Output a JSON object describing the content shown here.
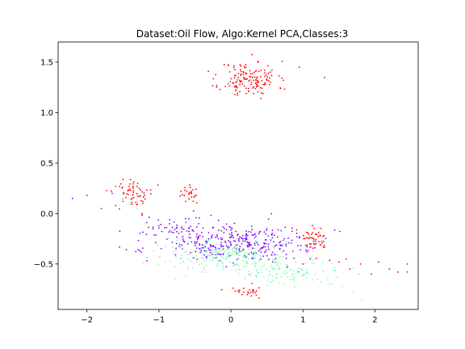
{
  "chart_data": {
    "type": "scatter",
    "title": "Dataset:Oil Flow, Algo:Kernel PCA,Classes:3",
    "xlabel": "",
    "ylabel": "",
    "xlim": [
      -2.4,
      2.6
    ],
    "ylim": [
      -0.95,
      1.7
    ],
    "xticks": [
      -2,
      -1,
      0,
      1,
      2
    ],
    "xtick_labels": [
      "−2",
      "−1",
      "0",
      "1",
      "2"
    ],
    "yticks": [
      -0.5,
      0.0,
      0.5,
      1.0,
      1.5
    ],
    "ytick_labels": [
      "−0.5",
      "0.0",
      "0.5",
      "1.0",
      "1.5"
    ],
    "grid": false,
    "legend": "none",
    "series": [
      {
        "color": "#ff0000",
        "clusters": [
          {
            "cx": 0.25,
            "cy": 1.33,
            "sx": 0.2,
            "sy": 0.09,
            "n": 150,
            "seed": 11
          },
          {
            "cx": -1.33,
            "cy": 0.2,
            "sx": 0.15,
            "sy": 0.07,
            "n": 60,
            "seed": 12
          },
          {
            "cx": -0.58,
            "cy": 0.2,
            "sx": 0.07,
            "sy": 0.04,
            "n": 25,
            "seed": 13
          },
          {
            "cx": 1.2,
            "cy": -0.25,
            "sx": 0.12,
            "sy": 0.06,
            "n": 45,
            "seed": 14
          },
          {
            "cx": 0.25,
            "cy": -0.77,
            "sx": 0.12,
            "sy": 0.03,
            "n": 25,
            "seed": 15
          }
        ],
        "points": [
          [
            1.8,
            -0.5
          ],
          [
            1.95,
            -0.6
          ],
          [
            2.05,
            -0.48
          ],
          [
            2.2,
            -0.55
          ],
          [
            2.32,
            -0.58
          ],
          [
            2.45,
            -0.5
          ],
          [
            2.45,
            -0.58
          ],
          [
            1.6,
            -0.45
          ],
          [
            1.5,
            -0.48
          ],
          [
            1.65,
            -0.55
          ],
          [
            1.3,
            1.35
          ],
          [
            0.95,
            1.45
          ]
        ]
      },
      {
        "color": "#8000ff",
        "clusters": [
          {
            "cx": 0.15,
            "cy": -0.3,
            "sx": 0.55,
            "sy": 0.09,
            "n": 330,
            "seed": 21
          },
          {
            "cx": -0.8,
            "cy": -0.15,
            "sx": 0.25,
            "sy": 0.07,
            "n": 60,
            "seed": 22
          }
        ],
        "points": [
          [
            -2.2,
            0.15
          ],
          [
            -2.0,
            0.18
          ],
          [
            -1.8,
            0.05
          ],
          [
            -1.6,
            0.08
          ],
          [
            -1.5,
            0.12
          ],
          [
            -1.65,
            0.2
          ],
          [
            1.0,
            -0.5
          ],
          [
            1.1,
            -0.45
          ]
        ]
      },
      {
        "color": "#80ffb4",
        "clusters": [
          {
            "cx": -0.1,
            "cy": -0.42,
            "sx": 0.5,
            "sy": 0.08,
            "n": 230,
            "seed": 31
          },
          {
            "cx": 0.7,
            "cy": -0.58,
            "sx": 0.4,
            "sy": 0.06,
            "n": 110,
            "seed": 32
          }
        ],
        "points": [
          [
            -1.5,
            0.15
          ],
          [
            -1.4,
            0.1
          ],
          [
            -1.3,
            0.05
          ],
          [
            -1.2,
            -0.1
          ],
          [
            1.55,
            -0.72
          ],
          [
            1.7,
            -0.78
          ],
          [
            1.82,
            -0.85
          ],
          [
            1.4,
            -0.7
          ],
          [
            1.25,
            -0.68
          ]
        ]
      }
    ]
  }
}
